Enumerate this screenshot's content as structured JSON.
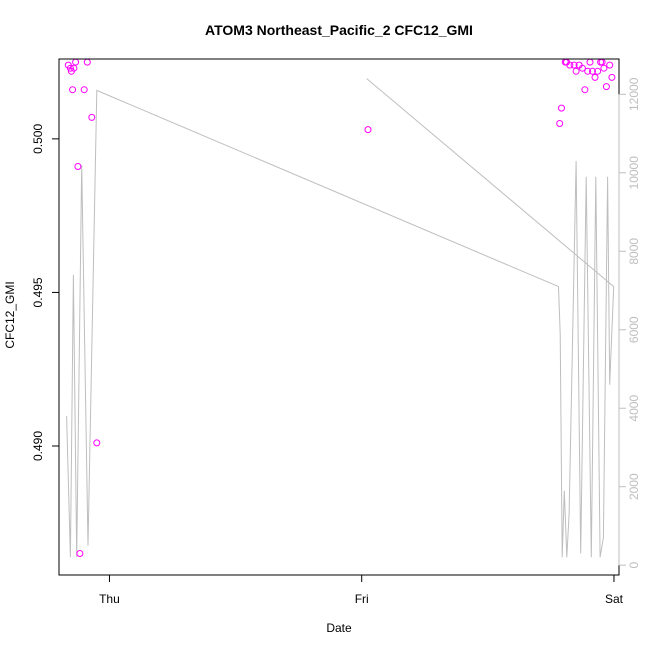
{
  "chart_data": {
    "type": "scatter",
    "title": "ATOM3 Northeast_Pacific_2 CFC12_GMI",
    "xlabel": "Date",
    "ylabel": "CFC12_GMI",
    "x_ticks": [
      {
        "label": "Thu",
        "value": 0
      },
      {
        "label": "Fri",
        "value": 1
      },
      {
        "label": "Sat",
        "value": 2
      }
    ],
    "xlim": [
      -0.2,
      2.02
    ],
    "ylim_left": [
      0.4858,
      0.5026
    ],
    "left_ticks": [
      0.49,
      0.495,
      0.5
    ],
    "left_tick_labels": [
      "0.490",
      "0.495",
      "0.500"
    ],
    "ylim_right": [
      -250,
      12900
    ],
    "right_ticks": [
      0,
      2000,
      4000,
      6000,
      8000,
      10000,
      12000
    ],
    "right_tick_labels": [
      "0",
      "2000",
      "4000",
      "6000",
      "8000",
      "10000",
      "12000"
    ],
    "colors": {
      "points": "#ff00ff",
      "line": "#bebebe",
      "frame": "#000000"
    },
    "series": [
      {
        "axis": "left",
        "style": "points",
        "points": [
          [
            -0.163,
            0.5024
          ],
          [
            -0.155,
            0.5023
          ],
          [
            -0.151,
            0.5022
          ],
          [
            -0.146,
            0.5016
          ],
          [
            -0.141,
            0.5023
          ],
          [
            -0.134,
            0.5025
          ],
          [
            -0.125,
            0.4991
          ],
          [
            -0.117,
            0.4865
          ],
          [
            -0.1,
            0.5016
          ],
          [
            -0.088,
            0.5025
          ],
          [
            -0.07,
            0.5007
          ],
          [
            -0.05,
            0.4901
          ],
          [
            1.025,
            0.5003
          ],
          [
            1.785,
            0.5005
          ],
          [
            1.792,
            0.501
          ],
          [
            1.807,
            0.5025
          ],
          [
            1.812,
            0.5025
          ],
          [
            1.825,
            0.5024
          ],
          [
            1.842,
            0.5024
          ],
          [
            1.85,
            0.5022
          ],
          [
            1.862,
            0.5024
          ],
          [
            1.875,
            0.5023
          ],
          [
            1.885,
            0.5016
          ],
          [
            1.896,
            0.5022
          ],
          [
            1.905,
            0.5025
          ],
          [
            1.915,
            0.5022
          ],
          [
            1.925,
            0.502
          ],
          [
            1.935,
            0.5022
          ],
          [
            1.947,
            0.5025
          ],
          [
            1.953,
            0.5025
          ],
          [
            1.96,
            0.5023
          ],
          [
            1.97,
            0.5017
          ],
          [
            1.983,
            0.5024
          ],
          [
            1.992,
            0.502
          ]
        ]
      },
      {
        "axis": "right",
        "style": "line",
        "points": [
          [
            -0.17,
            3800
          ],
          [
            -0.155,
            200
          ],
          [
            -0.143,
            7400
          ],
          [
            -0.13,
            200
          ],
          [
            -0.11,
            10200
          ],
          [
            -0.085,
            500
          ],
          [
            -0.05,
            12100
          ],
          [
            1.78,
            7100
          ],
          [
            1.787,
            5900
          ],
          [
            1.795,
            200
          ],
          [
            1.803,
            1900
          ],
          [
            1.813,
            200
          ],
          [
            1.822,
            1300
          ],
          [
            1.85,
            10300
          ],
          [
            1.868,
            300
          ],
          [
            1.89,
            9900
          ],
          [
            1.91,
            200
          ],
          [
            1.928,
            9900
          ],
          [
            1.945,
            200
          ],
          [
            1.958,
            700
          ],
          [
            1.975,
            9900
          ],
          [
            1.983,
            4600
          ],
          [
            1.999,
            7100
          ],
          [
            1.02,
            12400
          ]
        ]
      }
    ]
  }
}
